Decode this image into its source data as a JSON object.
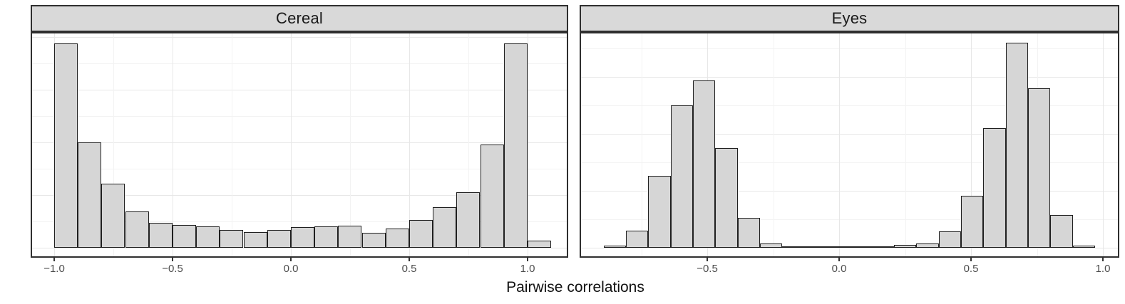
{
  "figure": {
    "xlab": "Pairwise correlations",
    "facet_titles": [
      "Cereal",
      "Eyes"
    ],
    "y_axis_labels": "none"
  },
  "style": {
    "bar_fill": "#d6d6d6",
    "bar_stroke": "#1f1f1f",
    "strip_bg": "#d9d9d9",
    "frame": "#2f2f2f",
    "grid_major": "#e7e7e7",
    "grid_minor": "#f3f3f3",
    "tick_label_color": "#4d4d4d"
  },
  "chart_data": [
    {
      "type": "bar",
      "subtype": "histogram",
      "facet": "Cereal",
      "title": "Cereal",
      "xlabel": "Pairwise correlations",
      "ylabel": "",
      "grid": true,
      "legend": "none",
      "xlim": [
        -1.099,
        1.172
      ],
      "ylim": [
        0,
        1.056
      ],
      "x_ticks": [
        -1.0,
        -0.5,
        0.0,
        0.5,
        1.0
      ],
      "x_tick_labels": [
        "−1.0",
        "−0.5",
        "0.0",
        "0.5",
        "1.0"
      ],
      "x_minor_ticks": [
        -0.75,
        -0.25,
        0.25,
        0.75
      ],
      "bin_start": -1.0,
      "bin_width": 0.1,
      "values_relative_to_max": [
        1.0,
        0.516,
        0.314,
        0.178,
        0.122,
        0.111,
        0.105,
        0.087,
        0.077,
        0.087,
        0.101,
        0.105,
        0.108,
        0.073,
        0.094,
        0.136,
        0.199,
        0.272,
        0.505,
        1.0,
        0.035
      ]
    },
    {
      "type": "bar",
      "subtype": "histogram",
      "facet": "Eyes",
      "title": "Eyes",
      "xlabel": "Pairwise correlations",
      "ylabel": "",
      "grid": true,
      "legend": "none",
      "xlim": [
        -0.984,
        1.062
      ],
      "ylim": [
        0,
        1.052
      ],
      "x_ticks": [
        -0.5,
        0.0,
        0.5,
        1.0
      ],
      "x_tick_labels": [
        "−0.5",
        "0.0",
        "0.5",
        "1.0"
      ],
      "x_minor_ticks": [
        -0.75,
        -0.25,
        0.25,
        0.75
      ],
      "bin_start": -0.893,
      "bin_width": 0.0847,
      "values_relative_to_max": [
        0.01,
        0.083,
        0.351,
        0.694,
        0.816,
        0.486,
        0.146,
        0.021,
        0.007,
        0.003,
        0.003,
        0.003,
        0.003,
        0.014,
        0.021,
        0.08,
        0.253,
        0.583,
        1.0,
        0.778,
        0.16,
        0.01
      ]
    }
  ]
}
